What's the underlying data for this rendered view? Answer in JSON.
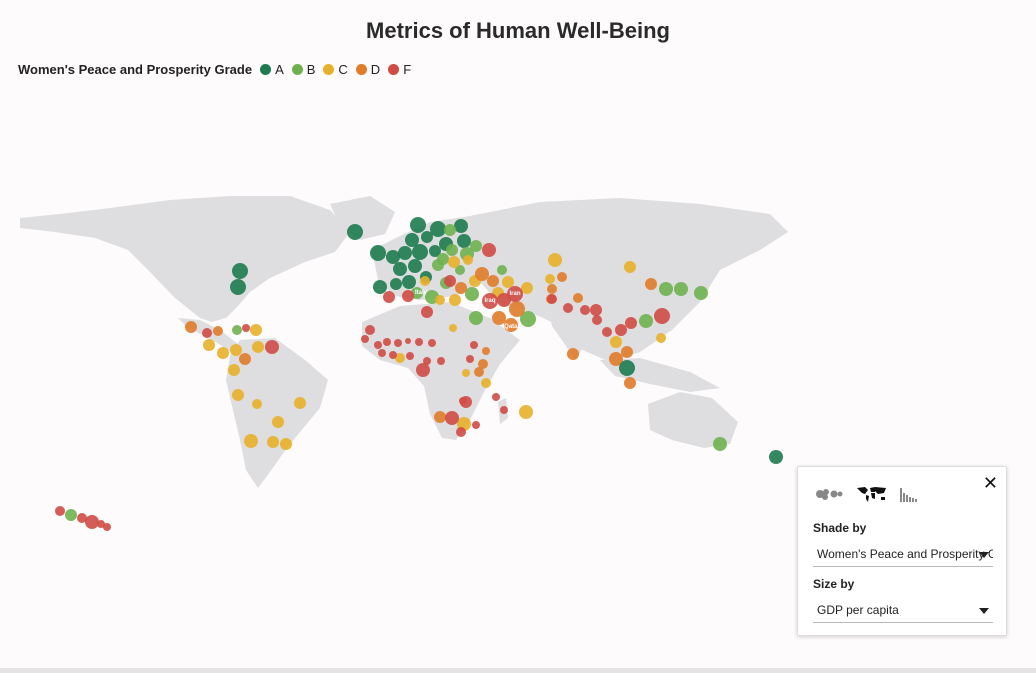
{
  "title": "Metrics of Human Well-Being",
  "legend": {
    "title": "Women's Peace and Prosperity Grade",
    "items": [
      {
        "label": "A",
        "color": "#1e7b4f"
      },
      {
        "label": "B",
        "color": "#6fb14f"
      },
      {
        "label": "C",
        "color": "#e8b02a"
      },
      {
        "label": "D",
        "color": "#e07c2a"
      },
      {
        "label": "F",
        "color": "#d04b45"
      }
    ]
  },
  "land_color": "#dedee0",
  "labels": [
    "Italy",
    "Iraq",
    "Iran",
    "Qatar"
  ],
  "panel": {
    "shade_label": "Shade by",
    "shade_value": "Women's Peace and Prosperity G",
    "size_label": "Size by",
    "size_value": "GDP per capita",
    "close": "✕"
  }
}
